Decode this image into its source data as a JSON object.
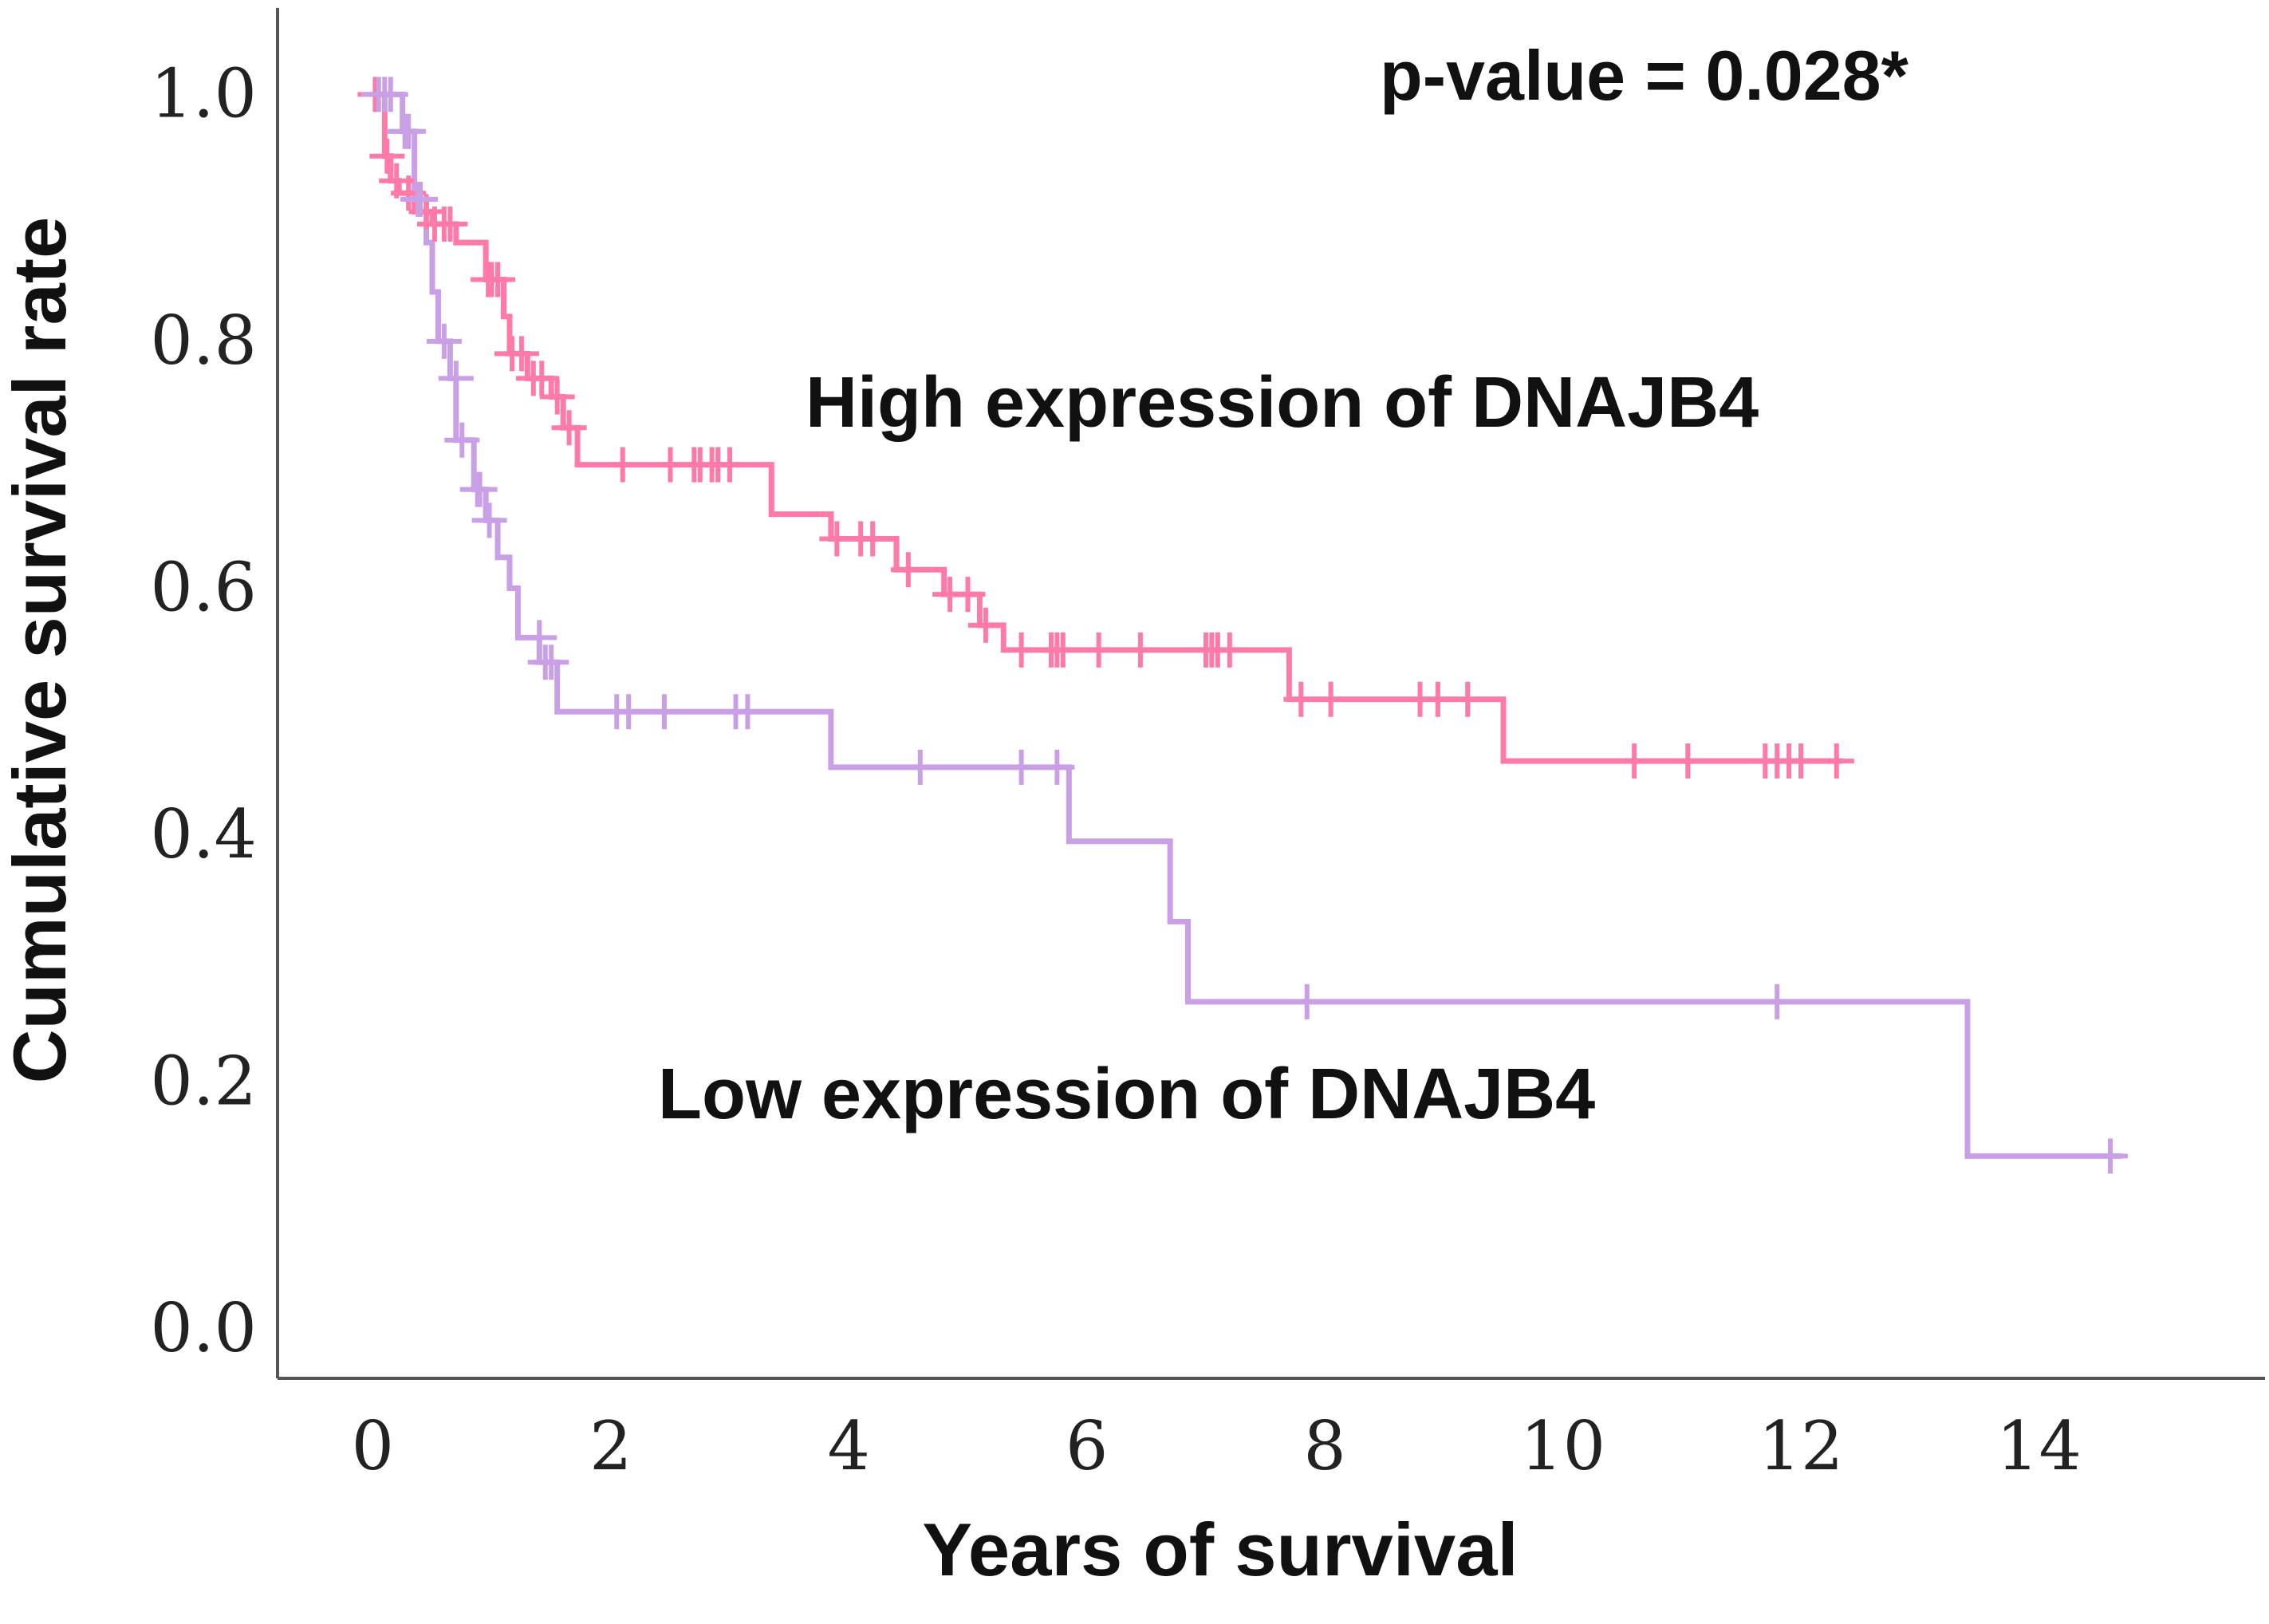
{
  "chart_data": {
    "type": "line",
    "subtype": "kaplan-meier step",
    "xlabel": "Years of survival",
    "ylabel": "Cumulative survival rate",
    "xlim": [
      -0.8,
      15.9
    ],
    "ylim": [
      -0.04,
      1.07
    ],
    "xticks": [
      0,
      2,
      4,
      6,
      8,
      10,
      12,
      14
    ],
    "yticks": [
      0.0,
      0.2,
      0.4,
      0.6,
      0.8,
      1.0
    ],
    "yticklabels": [
      "0.0",
      "0.2",
      "0.4",
      "0.6",
      "0.8",
      "1.0"
    ],
    "grid": false,
    "annotations": {
      "pvalue": "p-value = 0.028*",
      "high_label": "High expression of DNAJB4",
      "low_label": "Low expression of DNAJB4"
    },
    "series": [
      {
        "key": "high",
        "color": "#ff7aa8",
        "steps": [
          [
            0,
            1.0
          ],
          [
            0.1,
            0.95
          ],
          [
            0.15,
            0.93
          ],
          [
            0.22,
            0.92
          ],
          [
            0.35,
            0.905
          ],
          [
            0.5,
            0.895
          ],
          [
            0.7,
            0.88
          ],
          [
            0.95,
            0.85
          ],
          [
            1.1,
            0.82
          ],
          [
            1.15,
            0.79
          ],
          [
            1.3,
            0.77
          ],
          [
            1.5,
            0.755
          ],
          [
            1.6,
            0.73
          ],
          [
            1.72,
            0.7
          ],
          [
            3.35,
            0.66
          ],
          [
            3.85,
            0.64
          ],
          [
            4.4,
            0.615
          ],
          [
            4.8,
            0.595
          ],
          [
            5.1,
            0.57
          ],
          [
            5.3,
            0.55
          ],
          [
            7.7,
            0.51
          ],
          [
            9.5,
            0.46
          ],
          [
            12.35,
            0.46
          ]
        ],
        "censored": [
          [
            0.02,
            1.0
          ],
          [
            0.12,
            0.95
          ],
          [
            0.2,
            0.93
          ],
          [
            0.3,
            0.92
          ],
          [
            0.45,
            0.905
          ],
          [
            0.52,
            0.895
          ],
          [
            0.6,
            0.895
          ],
          [
            0.65,
            0.895
          ],
          [
            0.97,
            0.85
          ],
          [
            1.0,
            0.85
          ],
          [
            1.05,
            0.85
          ],
          [
            1.17,
            0.79
          ],
          [
            1.25,
            0.79
          ],
          [
            1.35,
            0.77
          ],
          [
            1.42,
            0.77
          ],
          [
            1.55,
            0.755
          ],
          [
            1.65,
            0.73
          ],
          [
            2.1,
            0.7
          ],
          [
            2.5,
            0.7
          ],
          [
            2.7,
            0.7
          ],
          [
            2.75,
            0.7
          ],
          [
            2.85,
            0.7
          ],
          [
            2.9,
            0.7
          ],
          [
            3.0,
            0.7
          ],
          [
            3.9,
            0.64
          ],
          [
            4.1,
            0.64
          ],
          [
            4.2,
            0.64
          ],
          [
            4.5,
            0.615
          ],
          [
            4.85,
            0.595
          ],
          [
            5.0,
            0.595
          ],
          [
            5.15,
            0.57
          ],
          [
            5.45,
            0.55
          ],
          [
            5.7,
            0.55
          ],
          [
            5.75,
            0.55
          ],
          [
            5.8,
            0.55
          ],
          [
            6.1,
            0.55
          ],
          [
            6.45,
            0.55
          ],
          [
            7.0,
            0.55
          ],
          [
            7.05,
            0.55
          ],
          [
            7.1,
            0.55
          ],
          [
            7.2,
            0.55
          ],
          [
            7.8,
            0.51
          ],
          [
            8.05,
            0.51
          ],
          [
            8.8,
            0.51
          ],
          [
            8.95,
            0.51
          ],
          [
            9.2,
            0.51
          ],
          [
            10.6,
            0.46
          ],
          [
            11.05,
            0.46
          ],
          [
            11.7,
            0.46
          ],
          [
            11.8,
            0.46
          ],
          [
            11.9,
            0.46
          ],
          [
            12.0,
            0.46
          ],
          [
            12.3,
            0.46
          ]
        ]
      },
      {
        "key": "low",
        "color": "#c9a0e6",
        "steps": [
          [
            0,
            1.0
          ],
          [
            0.25,
            0.97
          ],
          [
            0.35,
            0.915
          ],
          [
            0.45,
            0.88
          ],
          [
            0.5,
            0.84
          ],
          [
            0.55,
            0.8
          ],
          [
            0.65,
            0.77
          ],
          [
            0.7,
            0.72
          ],
          [
            0.85,
            0.68
          ],
          [
            0.95,
            0.655
          ],
          [
            1.05,
            0.625
          ],
          [
            1.15,
            0.6
          ],
          [
            1.22,
            0.56
          ],
          [
            1.4,
            0.54
          ],
          [
            1.55,
            0.5
          ],
          [
            3.85,
            0.455
          ],
          [
            5.85,
            0.395
          ],
          [
            6.7,
            0.33
          ],
          [
            6.85,
            0.265
          ],
          [
            13.4,
            0.14
          ],
          [
            14.7,
            0.14
          ]
        ],
        "censored": [
          [
            0.05,
            1.0
          ],
          [
            0.1,
            1.0
          ],
          [
            0.15,
            1.0
          ],
          [
            0.27,
            0.97
          ],
          [
            0.3,
            0.97
          ],
          [
            0.38,
            0.915
          ],
          [
            0.4,
            0.915
          ],
          [
            0.6,
            0.8
          ],
          [
            0.7,
            0.77
          ],
          [
            0.75,
            0.72
          ],
          [
            0.88,
            0.68
          ],
          [
            0.9,
            0.68
          ],
          [
            0.98,
            0.655
          ],
          [
            1.4,
            0.56
          ],
          [
            1.45,
            0.54
          ],
          [
            1.5,
            0.54
          ],
          [
            2.05,
            0.5
          ],
          [
            2.15,
            0.5
          ],
          [
            2.45,
            0.5
          ],
          [
            3.05,
            0.5
          ],
          [
            3.15,
            0.5
          ],
          [
            4.6,
            0.455
          ],
          [
            5.45,
            0.455
          ],
          [
            5.75,
            0.455
          ],
          [
            7.85,
            0.265
          ],
          [
            11.8,
            0.265
          ],
          [
            14.6,
            0.14
          ]
        ]
      }
    ]
  }
}
